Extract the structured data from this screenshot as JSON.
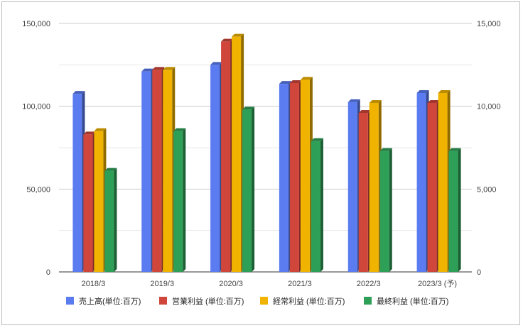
{
  "chart_data": {
    "type": "bar",
    "categories": [
      "2018/3",
      "2019/3",
      "2020/3",
      "2021/3",
      "2022/3",
      "2023/3 (予)"
    ],
    "series": [
      {
        "name": "売上高(単位:百万)",
        "axis": "left",
        "color": "#5b7cf0",
        "values": [
          107500,
          121000,
          125000,
          113500,
          102500,
          108000
        ]
      },
      {
        "name": "営業利益 (単位:百万)",
        "axis": "right",
        "color": "#d0463b",
        "values": [
          8300,
          12200,
          13900,
          11400,
          9600,
          10200
        ]
      },
      {
        "name": "経常利益 (単位:百万)",
        "axis": "right",
        "color": "#f0b400",
        "values": [
          8500,
          12200,
          14200,
          11600,
          10200,
          10800
        ]
      },
      {
        "name": "最終利益 (単位:百万)",
        "axis": "right",
        "color": "#2e9f57",
        "values": [
          6100,
          8500,
          9800,
          7900,
          7300,
          7300
        ]
      }
    ],
    "yaxis_left": {
      "min": 0,
      "max": 150000,
      "ticks": [
        "0",
        "50,000",
        "100,000",
        "150,000"
      ]
    },
    "yaxis_right": {
      "min": 0,
      "max": 15000,
      "ticks": [
        "0",
        "5,000",
        "10,000",
        "15,000"
      ]
    },
    "grid": true,
    "legend_position": "bottom",
    "title": "",
    "xlabel": "",
    "ylabel": ""
  }
}
